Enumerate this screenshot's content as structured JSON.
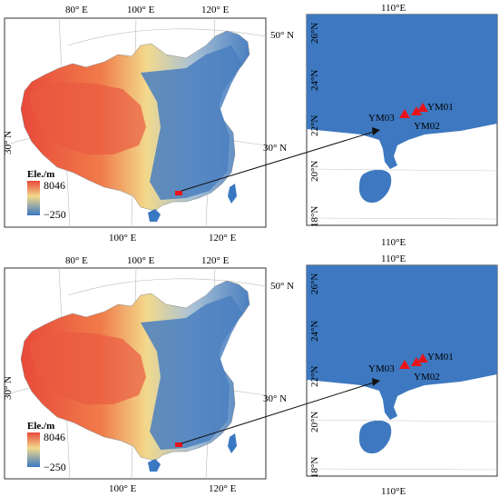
{
  "colors": {
    "high": "#e8493a",
    "mid": "#f2d98c",
    "low": "#3a78c2",
    "marker": "#e8141a",
    "frame": "#222222"
  },
  "colorbar": {
    "title": "Ele./m",
    "max_label": "8046",
    "min_label": "−250",
    "max_value": 8046,
    "min_value": -250
  },
  "china_map": {
    "top_ticks": [
      "80° E",
      "100° E",
      "120° E"
    ],
    "bottom_ticks": [
      "100° E",
      "120° E"
    ],
    "left_ticks": [
      "30° N"
    ],
    "right_ticks": [
      "50° N",
      "30° N"
    ]
  },
  "zoom_map": {
    "top_tick": "110°E",
    "bottom_tick": "110°E",
    "lat_ticks": [
      "26°N",
      "24°N",
      "22°N",
      "20°N",
      "18°N"
    ]
  },
  "sites": [
    {
      "label": "YM01",
      "lon": 112.6,
      "lat": 22.6
    },
    {
      "label": "YM02",
      "lon": 112.3,
      "lat": 22.4
    },
    {
      "label": "YM03",
      "lon": 111.7,
      "lat": 22.3
    }
  ]
}
